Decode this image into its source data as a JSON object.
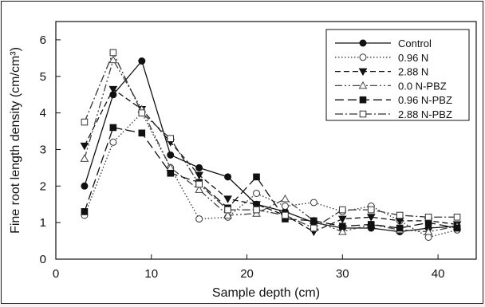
{
  "chart_data": {
    "type": "line",
    "xlabel": "Sample depth (cm)",
    "ylabel": "Fine root length density (cm/cm³)",
    "xlim": [
      0,
      44
    ],
    "ylim": [
      0,
      6.5
    ],
    "xticks": [
      "0",
      "10",
      "20",
      "30",
      "40"
    ],
    "yticks": [
      "0",
      "1",
      "2",
      "3",
      "4",
      "5",
      "6"
    ],
    "x": [
      3,
      6,
      9,
      12,
      15,
      18,
      21,
      24,
      27,
      30,
      33,
      36,
      39,
      42
    ],
    "legend_position": "top-right",
    "grid": false,
    "series": [
      {
        "name": "Control",
        "color": "#111111",
        "dash": "solid",
        "marker": "circle-filled",
        "values": [
          2.0,
          4.5,
          5.42,
          2.85,
          2.5,
          2.25,
          1.5,
          1.3,
          1.0,
          0.85,
          0.85,
          0.75,
          0.85,
          0.9
        ]
      },
      {
        "name": "0.96 N",
        "color": "#333333",
        "dash": "dotted",
        "marker": "circle-open",
        "values": [
          1.2,
          3.2,
          4.0,
          2.5,
          1.1,
          1.15,
          1.8,
          1.45,
          1.55,
          1.3,
          1.45,
          1.05,
          0.6,
          0.8
        ]
      },
      {
        "name": "2.88 N",
        "color": "#111111",
        "dash": "dashed",
        "marker": "triangle-down-filled",
        "values": [
          3.1,
          4.65,
          4.1,
          3.2,
          2.3,
          1.65,
          1.5,
          1.2,
          0.75,
          1.1,
          1.15,
          1.05,
          1.05,
          0.95
        ]
      },
      {
        "name": "0.0 N-PBZ",
        "color": "#444444",
        "dash": "dash-dot-dot",
        "marker": "triangle-up-open",
        "values": [
          2.75,
          5.45,
          4.1,
          2.5,
          1.9,
          1.2,
          1.25,
          1.65,
          1.05,
          0.75,
          0.95,
          0.8,
          0.75,
          0.9
        ]
      },
      {
        "name": "0.96 N-PBZ",
        "color": "#111111",
        "dash": "long-dash",
        "marker": "square-filled",
        "values": [
          1.3,
          3.6,
          3.45,
          2.35,
          2.1,
          1.4,
          2.25,
          1.1,
          1.05,
          0.9,
          0.95,
          0.85,
          1.0,
          0.85
        ]
      },
      {
        "name": "2.88 N-PBZ",
        "color": "#333333",
        "dash": "dash-dot",
        "marker": "square-open",
        "values": [
          3.75,
          5.65,
          4.0,
          3.3,
          2.05,
          1.35,
          1.35,
          1.2,
          0.85,
          1.35,
          1.35,
          1.2,
          1.15,
          1.15
        ]
      }
    ]
  }
}
